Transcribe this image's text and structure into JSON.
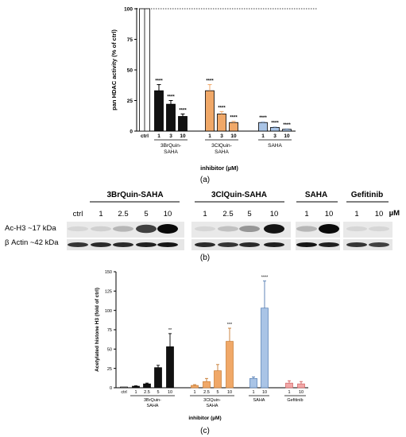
{
  "chart_data": [
    {
      "type": "bar",
      "panel_label": "(a)",
      "ylabel": "pan HDAC activity (% of ctrl)",
      "xlabel": "inhibitor (µM)",
      "ylim": [
        0,
        100
      ],
      "yticks": [
        "0",
        "25",
        "50",
        "75",
        "100"
      ],
      "categories": [
        "ctrl",
        "1",
        "3",
        "10",
        "1",
        "3",
        "10",
        "1",
        "3",
        "10"
      ],
      "groups": [
        "3BrQuin-\nSAHA",
        "3ClQuin-\nSAHA",
        "SAHA"
      ],
      "values": [
        100,
        33,
        22,
        12,
        33,
        14,
        7,
        7,
        3,
        1.5
      ],
      "errors": [
        0,
        5,
        3,
        2,
        5,
        2,
        1,
        0.7,
        0.5,
        0.4
      ],
      "significance": [
        "",
        "****",
        "****",
        "****",
        "****",
        "****",
        "****",
        "****",
        "****",
        "****"
      ],
      "colors": [
        "#ffffff",
        "#111111",
        "#111111",
        "#111111",
        "#f0a868",
        "#f0a868",
        "#f0a868",
        "#a9c4e6",
        "#a9c4e6",
        "#a9c4e6"
      ]
    },
    {
      "type": "blot",
      "panel_label": "(b)",
      "groups": [
        "3BrQuin-SAHA",
        "3ClQuin-SAHA",
        "SAHA",
        "Gefitinib"
      ],
      "unit": "µM",
      "lanes": [
        "ctrl",
        "1",
        "2.5",
        "5",
        "10",
        "1",
        "2.5",
        "5",
        "10",
        "1",
        "10",
        "1",
        "10"
      ],
      "rows": [
        "Ac-H3 ~17 kDa",
        "β Actin ~42 kDa"
      ],
      "band_intensity_ac_h3": [
        0.05,
        0.08,
        0.2,
        0.75,
        1.0,
        0.05,
        0.15,
        0.35,
        0.95,
        0.2,
        1.0,
        0.05,
        0.05
      ],
      "band_intensity_actin": [
        0.8,
        0.85,
        0.85,
        0.9,
        0.95,
        0.85,
        0.8,
        0.85,
        0.9,
        0.95,
        0.9,
        0.8,
        0.75
      ]
    },
    {
      "type": "bar",
      "panel_label": "(c)",
      "ylabel": "Acetylated histone H3 (fold of ctrl)",
      "xlabel": "inhibitor (µM)",
      "ylim": [
        0,
        150
      ],
      "yticks": [
        "0",
        "25",
        "50",
        "75",
        "100",
        "125",
        "150"
      ],
      "categories": [
        "ctrl",
        "1",
        "2.5",
        "5",
        "10",
        "1",
        "2.5",
        "5",
        "10",
        "1",
        "10",
        "1",
        "10"
      ],
      "groups": [
        "3BrQuin-\nSAHA",
        "3ClQuin-\nSAHA",
        "SAHA",
        "Gefitinib"
      ],
      "values": [
        1,
        2,
        5,
        26,
        53,
        3,
        8,
        22,
        60,
        12,
        103,
        6,
        5
      ],
      "errors": [
        0,
        0.5,
        1,
        3,
        17,
        1,
        4,
        8,
        17,
        2,
        35,
        3,
        3
      ],
      "significance": [
        "",
        "",
        "",
        "",
        "**",
        "",
        "",
        "",
        "***",
        "",
        "****",
        "",
        ""
      ],
      "colors": [
        "#ffffff",
        "#111111",
        "#111111",
        "#111111",
        "#111111",
        "#f0a868",
        "#f0a868",
        "#f0a868",
        "#f0a868",
        "#a9c4e6",
        "#a9c4e6",
        "#f2a8a8",
        "#f2a8a8"
      ]
    }
  ]
}
